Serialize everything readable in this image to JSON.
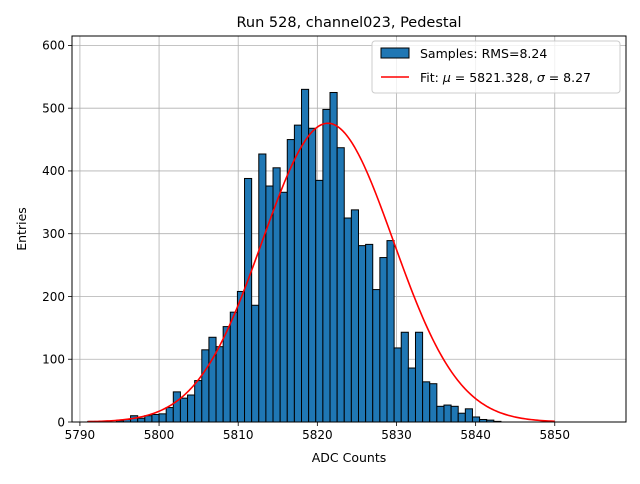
{
  "chart_data": {
    "type": "bar",
    "title": "Run 528, channel023, Pedestal",
    "xlabel": "ADC Counts",
    "ylabel": "Entries",
    "xlim": [
      5789,
      5859
    ],
    "ylim": [
      0,
      615
    ],
    "xticks": [
      5790,
      5800,
      5810,
      5820,
      5830,
      5840,
      5850
    ],
    "yticks": [
      0,
      100,
      200,
      300,
      400,
      500,
      600
    ],
    "grid": true,
    "legend_position": "top-right",
    "histogram": {
      "name": "Samples: RMS=8.24",
      "color": "#1f77b4",
      "edge_color": "#000000",
      "bin_start": 5791,
      "bin_width": 0.9,
      "counts": [
        1,
        0,
        1,
        0,
        2,
        4,
        10,
        6,
        10,
        12,
        13,
        23,
        48,
        38,
        43,
        66,
        115,
        135,
        120,
        152,
        175,
        208,
        388,
        186,
        427,
        376,
        405,
        366,
        450,
        473,
        530,
        468,
        385,
        498,
        525,
        437,
        325,
        338,
        281,
        283,
        211,
        262,
        289,
        118,
        143,
        86,
        143,
        64,
        61,
        25,
        27,
        25,
        14,
        21,
        8,
        4,
        3,
        1,
        0,
        0,
        0,
        0,
        0,
        0,
        0,
        0,
        0,
        0,
        0,
        0,
        0
      ]
    },
    "fit": {
      "name": "Fit: μ = 5821.328, σ = 8.27",
      "color": "#ff0000",
      "mu": 5821.328,
      "sigma": 8.27,
      "amplitude": 476,
      "x_range": [
        5791,
        5850
      ]
    },
    "legend": {
      "samples_prefix": "Samples: ",
      "samples_value": "RMS=8.24",
      "fit_prefix": "Fit: ",
      "fit_mu_symbol": "μ",
      "fit_mu_value": " = 5821.328, ",
      "fit_sigma_symbol": "σ",
      "fit_sigma_value": " = 8.27"
    }
  }
}
